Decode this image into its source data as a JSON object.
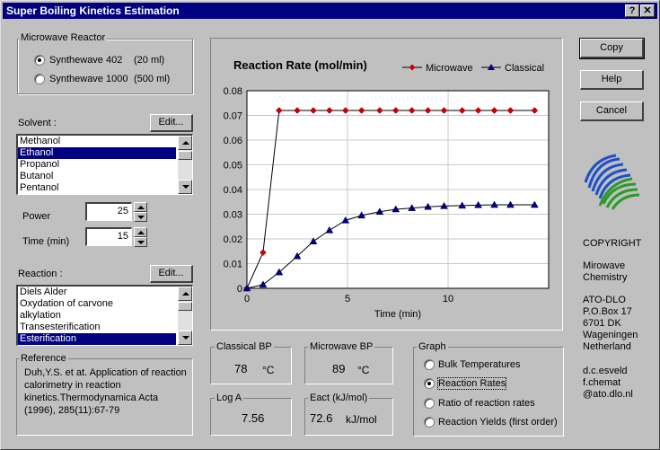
{
  "window": {
    "title": "Super Boiling Kinetics Estimation",
    "help_btn": "?",
    "close_btn": "✕"
  },
  "reactor": {
    "label": "Microwave Reactor",
    "options": [
      {
        "name": "Synthewave 402",
        "volume": "(20 ml)",
        "selected": true
      },
      {
        "name": "Synthewave 1000",
        "volume": "(500 ml)",
        "selected": false
      }
    ]
  },
  "solvent": {
    "label": "Solvent :",
    "edit_label": "Edit...",
    "items": [
      "Methanol",
      "Ethanol",
      "Propanol",
      "Butanol",
      "Pentanol"
    ],
    "selected_index": 1
  },
  "power": {
    "label": "Power",
    "value": "25"
  },
  "time": {
    "label": "Time  (min)",
    "value": "15"
  },
  "reaction": {
    "label": "Reaction :",
    "edit_label": "Edit...",
    "items": [
      "Diels Alder",
      "Oxydation of carvone",
      "alkylation",
      "Transesterification",
      "Esterification"
    ],
    "selected_index": 4
  },
  "reference": {
    "label": "Reference",
    "text": "Duh,Y.S. et at. Application of reaction calorimetry in reaction kinetics.Thermodynamica Acta (1996), 285(11):67-79"
  },
  "buttons": {
    "copy": "Copy",
    "help": "Help",
    "cancel": "Cancel"
  },
  "copyright": {
    "title": "COPYRIGHT",
    "org1": [
      "Mirowave",
      "Chemistry"
    ],
    "org2": [
      "ATO-DLO",
      "P.O.Box 17",
      "6701 DK",
      "Wageningen",
      "Netherland"
    ],
    "contacts": [
      "d.c.esveld",
      "f.chemat",
      "@ato.dlo.nl"
    ]
  },
  "results": {
    "classical_bp": {
      "label": "Classical BP",
      "value": "78",
      "unit": "°C"
    },
    "microwave_bp": {
      "label": "Microwave BP",
      "value": "89",
      "unit": "°C"
    },
    "log_a": {
      "label": "Log A",
      "value": "7.56"
    },
    "eact": {
      "label": "Eact  (kJ/mol)",
      "value": "72.6",
      "unit": "kJ/mol"
    }
  },
  "graph": {
    "label": "Graph",
    "options": [
      "Bulk Temperatures",
      "Reaction Rates",
      "Ratio of reaction rates",
      "Reaction Yields (first order)"
    ],
    "selected_index": 1
  },
  "chart_data": {
    "type": "line",
    "title": "Reaction Rate (mol/min)",
    "xlabel": "Time (min)",
    "ylabel": "",
    "xlim": [
      0,
      15
    ],
    "ylim": [
      0,
      0.08
    ],
    "xticks": [
      "0",
      "5",
      "10"
    ],
    "yticks": [
      "0",
      "0.01",
      "0.02",
      "0.03",
      "0.04",
      "0.05",
      "0.06",
      "0.07",
      "0.08"
    ],
    "grid": true,
    "legend": "top-right",
    "series": [
      {
        "name": "Microwave",
        "color": "#cc0000",
        "marker": "diamond",
        "x": [
          0,
          0.8,
          1.6,
          2.5,
          3.3,
          4.1,
          4.9,
          5.7,
          6.6,
          7.4,
          8.2,
          9.0,
          9.8,
          10.7,
          11.5,
          12.3,
          13.1,
          14.3
        ],
        "y": [
          0,
          0.0145,
          0.072,
          0.072,
          0.072,
          0.072,
          0.072,
          0.072,
          0.072,
          0.072,
          0.072,
          0.072,
          0.072,
          0.072,
          0.072,
          0.072,
          0.072,
          0.072
        ]
      },
      {
        "name": "Classical",
        "color": "#000080",
        "marker": "triangle",
        "x": [
          0,
          0.8,
          1.6,
          2.5,
          3.3,
          4.1,
          4.9,
          5.7,
          6.6,
          7.4,
          8.2,
          9.0,
          9.8,
          10.7,
          11.5,
          12.3,
          13.1,
          14.3
        ],
        "y": [
          0,
          0.0015,
          0.0065,
          0.013,
          0.019,
          0.0235,
          0.0275,
          0.0295,
          0.031,
          0.032,
          0.0325,
          0.033,
          0.0333,
          0.0335,
          0.0337,
          0.0338,
          0.0338,
          0.0338
        ]
      }
    ]
  }
}
